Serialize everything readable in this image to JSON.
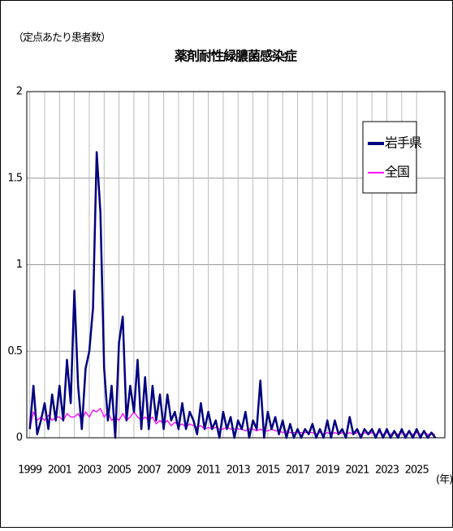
{
  "chart_data": {
    "type": "line",
    "title": "薬剤耐性緑膿菌感染症",
    "y_label": "（定点あたり患者数）",
    "x_label": "(年)",
    "x": [
      1999,
      1999.25,
      1999.5,
      1999.75,
      2000,
      2000.25,
      2000.5,
      2000.75,
      2001,
      2001.25,
      2001.5,
      2001.75,
      2002,
      2002.25,
      2002.5,
      2002.75,
      2003,
      2003.25,
      2003.5,
      2003.75,
      2004,
      2004.25,
      2004.5,
      2004.75,
      2005,
      2005.25,
      2005.5,
      2005.75,
      2006,
      2006.25,
      2006.5,
      2006.75,
      2007,
      2007.25,
      2007.5,
      2007.75,
      2008,
      2008.25,
      2008.5,
      2008.75,
      2009,
      2009.25,
      2009.5,
      2009.75,
      2010,
      2010.25,
      2010.5,
      2010.75,
      2011,
      2011.25,
      2011.5,
      2011.75,
      2012,
      2012.25,
      2012.5,
      2012.75,
      2013,
      2013.25,
      2013.5,
      2013.75,
      2014,
      2014.25,
      2014.5,
      2014.75,
      2015,
      2015.25,
      2015.5,
      2015.75,
      2016,
      2016.25,
      2016.5,
      2016.75,
      2017,
      2017.25,
      2017.5,
      2017.75,
      2018,
      2018.25,
      2018.5,
      2018.75,
      2019,
      2019.25,
      2019.5,
      2019.75,
      2020,
      2020.25,
      2020.5,
      2020.75,
      2021,
      2021.25,
      2021.5,
      2021.75,
      2022,
      2022.25,
      2022.5,
      2022.75,
      2023,
      2023.25,
      2023.5,
      2023.75,
      2024,
      2024.25,
      2024.5,
      2024.75,
      2025,
      2025.25,
      2025.5,
      2025.75,
      2026,
      2026.25
    ],
    "series": [
      {
        "name": "岩手県",
        "color": "#000080",
        "values": [
          0.05,
          0.3,
          0.02,
          0.1,
          0.2,
          0.05,
          0.25,
          0.1,
          0.3,
          0.1,
          0.45,
          0.2,
          0.85,
          0.3,
          0.05,
          0.4,
          0.5,
          0.75,
          1.65,
          1.3,
          0.4,
          0.1,
          0.3,
          0,
          0.55,
          0.7,
          0.1,
          0.3,
          0.15,
          0.45,
          0.05,
          0.35,
          0.05,
          0.3,
          0.1,
          0.25,
          0.05,
          0.25,
          0.1,
          0.15,
          0.05,
          0.2,
          0.05,
          0.15,
          0.1,
          0.02,
          0.2,
          0.05,
          0.15,
          0.05,
          0.1,
          0,
          0.15,
          0.05,
          0.12,
          0,
          0.1,
          0.05,
          0.15,
          0,
          0.1,
          0.05,
          0.33,
          0,
          0.15,
          0.05,
          0.12,
          0.02,
          0.1,
          0,
          0.08,
          0,
          0.05,
          0,
          0.05,
          0.02,
          0.08,
          0,
          0.05,
          0,
          0.1,
          0,
          0.1,
          0.02,
          0.05,
          0,
          0.12,
          0.02,
          0.05,
          0,
          0.05,
          0.02,
          0.05,
          0,
          0.05,
          0,
          0.05,
          0,
          0.04,
          0,
          0.05,
          0,
          0.04,
          0,
          0.05,
          0,
          0.04,
          0,
          0.03,
          0
        ]
      },
      {
        "name": "全国",
        "color": "#ff00ff",
        "values": [
          0.05,
          0.15,
          0.1,
          0.12,
          0.1,
          0.13,
          0.1,
          0.12,
          0.12,
          0.1,
          0.14,
          0.12,
          0.12,
          0.14,
          0.1,
          0.15,
          0.12,
          0.16,
          0.15,
          0.17,
          0.12,
          0.15,
          0.1,
          0.12,
          0.1,
          0.14,
          0.1,
          0.12,
          0.15,
          0.12,
          0.1,
          0.12,
          0.1,
          0.12,
          0.08,
          0.1,
          0.08,
          0.1,
          0.07,
          0.09,
          0.07,
          0.08,
          0.06,
          0.08,
          0.07,
          0.06,
          0.07,
          0.05,
          0.06,
          0.05,
          0.06,
          0.05,
          0.05,
          0.06,
          0.05,
          0.05,
          0.05,
          0.05,
          0.04,
          0.05,
          0.05,
          0.04,
          0.05,
          0.04,
          0.04,
          0.05,
          0.04,
          0.04,
          0.03,
          0.04,
          0.03,
          0.03,
          0.03,
          0.03,
          0.03,
          0.03,
          0.03,
          0.02,
          0.03,
          0.02,
          0.03,
          0.02,
          0.03,
          0.02,
          0.03,
          0.02,
          0.03,
          0.02,
          0.03,
          0.02,
          0.03,
          0.02,
          0.03,
          0.02,
          0.03,
          0.02,
          0.03,
          0.02,
          0.03,
          0.02,
          0.03,
          0.02,
          0.03,
          0.02,
          0.03,
          0.02,
          0.03,
          0.02,
          0.02,
          0.02
        ]
      }
    ],
    "xlim": [
      1998.8,
      2026.9
    ],
    "xticks": [
      1999,
      2001,
      2003,
      2005,
      2007,
      2009,
      2011,
      2013,
      2015,
      2017,
      2019,
      2021,
      2023,
      2025
    ],
    "ylim": [
      0,
      2
    ],
    "yticks": [
      0,
      0.5,
      1,
      1.5,
      2
    ],
    "grid": true,
    "legend": "upper right"
  }
}
